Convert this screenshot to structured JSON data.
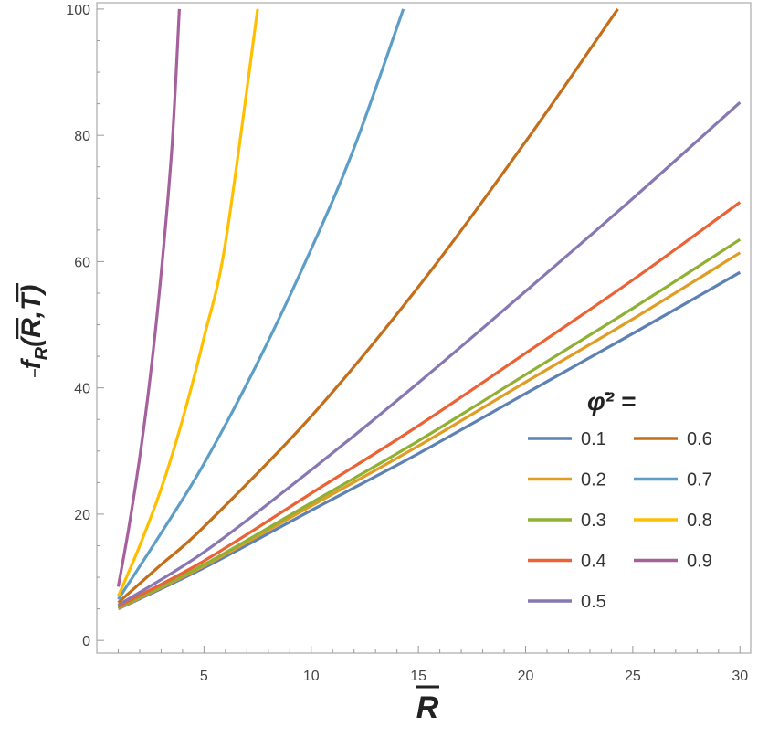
{
  "chart_data": {
    "type": "line",
    "xlabel": "R",
    "ylabel": "f_R(R,T)",
    "legend_title": "φ̇² =",
    "legend_placement": "right-middle",
    "xlim": [
      0,
      30.5
    ],
    "ylim": [
      -2,
      101
    ],
    "xticks": [
      5,
      10,
      15,
      20,
      25,
      30
    ],
    "yticks": [
      0,
      20,
      40,
      60,
      80,
      100
    ],
    "grid": false,
    "series": [
      {
        "name": "0.1",
        "color": "#5e81b5",
        "x": [
          1,
          5,
          10,
          15,
          20,
          25,
          30
        ],
        "y": [
          5.0,
          11.5,
          20.6,
          29.6,
          39.1,
          48.6,
          58.3
        ]
      },
      {
        "name": "0.2",
        "color": "#e19c24",
        "x": [
          1,
          5,
          10,
          15,
          20,
          25,
          30
        ],
        "y": [
          5.1,
          11.8,
          21.3,
          30.8,
          40.9,
          50.9,
          61.4
        ]
      },
      {
        "name": "0.3",
        "color": "#8fb032",
        "x": [
          1,
          5,
          10,
          15,
          20,
          25,
          30
        ],
        "y": [
          5.2,
          12.0,
          21.8,
          31.6,
          42.1,
          52.6,
          63.5
        ]
      },
      {
        "name": "0.4",
        "color": "#eb6235",
        "x": [
          1,
          5,
          10,
          15,
          20,
          25,
          30
        ],
        "y": [
          5.4,
          12.6,
          23.3,
          34.0,
          45.5,
          57.1,
          69.4
        ]
      },
      {
        "name": "0.5",
        "color": "#8778b3",
        "x": [
          1,
          5,
          10,
          15,
          20,
          25,
          30
        ],
        "y": [
          5.6,
          14.0,
          27.0,
          40.8,
          55.3,
          70.0,
          85.2
        ]
      },
      {
        "name": "0.6",
        "color": "#c56e1a",
        "x": [
          1,
          3,
          5,
          10,
          15,
          20,
          24.3
        ],
        "y": [
          6.0,
          12.0,
          18.0,
          35.5,
          56.0,
          79.0,
          100
        ]
      },
      {
        "name": "0.7",
        "color": "#5d9ec7",
        "x": [
          1,
          3,
          5,
          7.5,
          10,
          12,
          14.3
        ],
        "y": [
          6.5,
          17.0,
          28.0,
          44.0,
          62.0,
          78.0,
          100
        ]
      },
      {
        "name": "0.8",
        "color": "#ffbf00",
        "x": [
          1,
          2,
          3,
          4,
          5,
          6,
          7.5
        ],
        "y": [
          7.0,
          15.0,
          24.0,
          35.0,
          48.0,
          63.0,
          100
        ]
      },
      {
        "name": "0.9",
        "color": "#a5609d",
        "x": [
          1,
          1.5,
          2,
          2.5,
          3,
          3.5,
          3.85
        ],
        "y": [
          8.5,
          18.0,
          29.0,
          42.0,
          58.0,
          78.0,
          100
        ]
      }
    ]
  }
}
